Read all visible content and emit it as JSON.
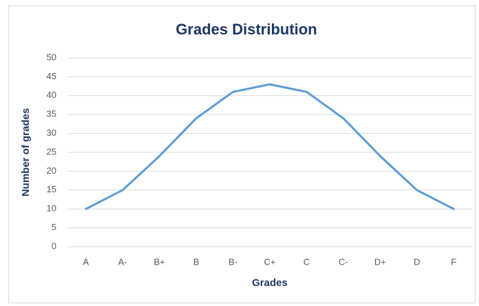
{
  "chart_data": {
    "type": "line",
    "title": "Grades Distribution",
    "x_label": "Grades",
    "y_label": "Number of grades",
    "categories": [
      "A",
      "A-",
      "B+",
      "B",
      "B-",
      "C+",
      "C",
      "C-",
      "D+",
      "D",
      "F"
    ],
    "series": [
      {
        "name": "Number of grades",
        "color": "#5b9bd5",
        "values": [
          10,
          15,
          24,
          34,
          41,
          43,
          41,
          34,
          24,
          15,
          10
        ]
      }
    ],
    "ylim": [
      0,
      50
    ],
    "yticks": [
      0,
      5,
      10,
      15,
      20,
      25,
      30,
      35,
      40,
      45,
      50
    ],
    "grid": true
  }
}
